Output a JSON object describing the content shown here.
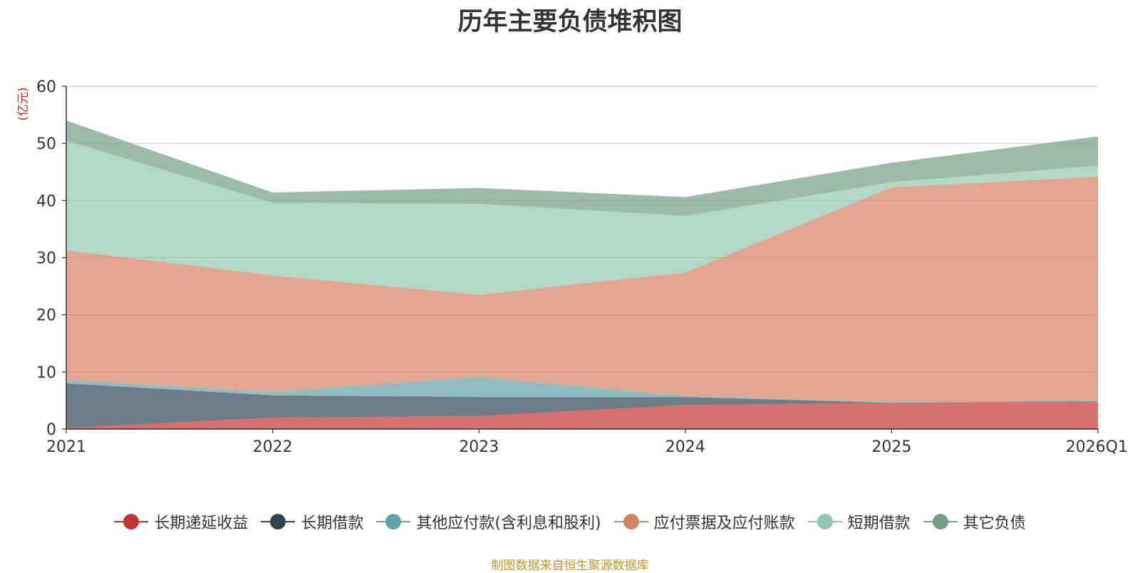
{
  "chart_data": {
    "type": "area",
    "stacked": true,
    "title": "历年主要负债堆积图",
    "unit_label": "(亿元)",
    "categories": [
      "2021",
      "2022",
      "2023",
      "2024",
      "2025",
      "2026Q1"
    ],
    "ylim": [
      0,
      60
    ],
    "yticks": [
      0,
      10,
      20,
      30,
      40,
      50,
      60
    ],
    "grid": true,
    "legend_position": "bottom",
    "series": [
      {
        "name": "长期递延收益",
        "color": "#c23531",
        "values": [
          0.2,
          2.0,
          2.3,
          4.2,
          4.6,
          4.9
        ]
      },
      {
        "name": "长期借款",
        "color": "#2f4554",
        "values": [
          7.8,
          3.9,
          3.3,
          1.4,
          0.0,
          0.0
        ]
      },
      {
        "name": "其他应付款(含利息和股利)",
        "color": "#61a0a8",
        "values": [
          0.6,
          0.6,
          3.5,
          0.2,
          0.1,
          0.2
        ]
      },
      {
        "name": "应付票据及应付账款",
        "color": "#d48265",
        "values": [
          22.7,
          20.4,
          14.4,
          21.6,
          37.6,
          39.1
        ]
      },
      {
        "name": "短期借款",
        "color": "#91c7ae",
        "values": [
          19.2,
          12.7,
          15.9,
          9.9,
          0.9,
          1.9
        ]
      },
      {
        "name": "其它负债",
        "color": "#749f83",
        "values": [
          3.5,
          1.8,
          2.8,
          3.3,
          3.4,
          5.1
        ]
      }
    ]
  },
  "source_note": "制图数据来自恒生聚源数据库"
}
